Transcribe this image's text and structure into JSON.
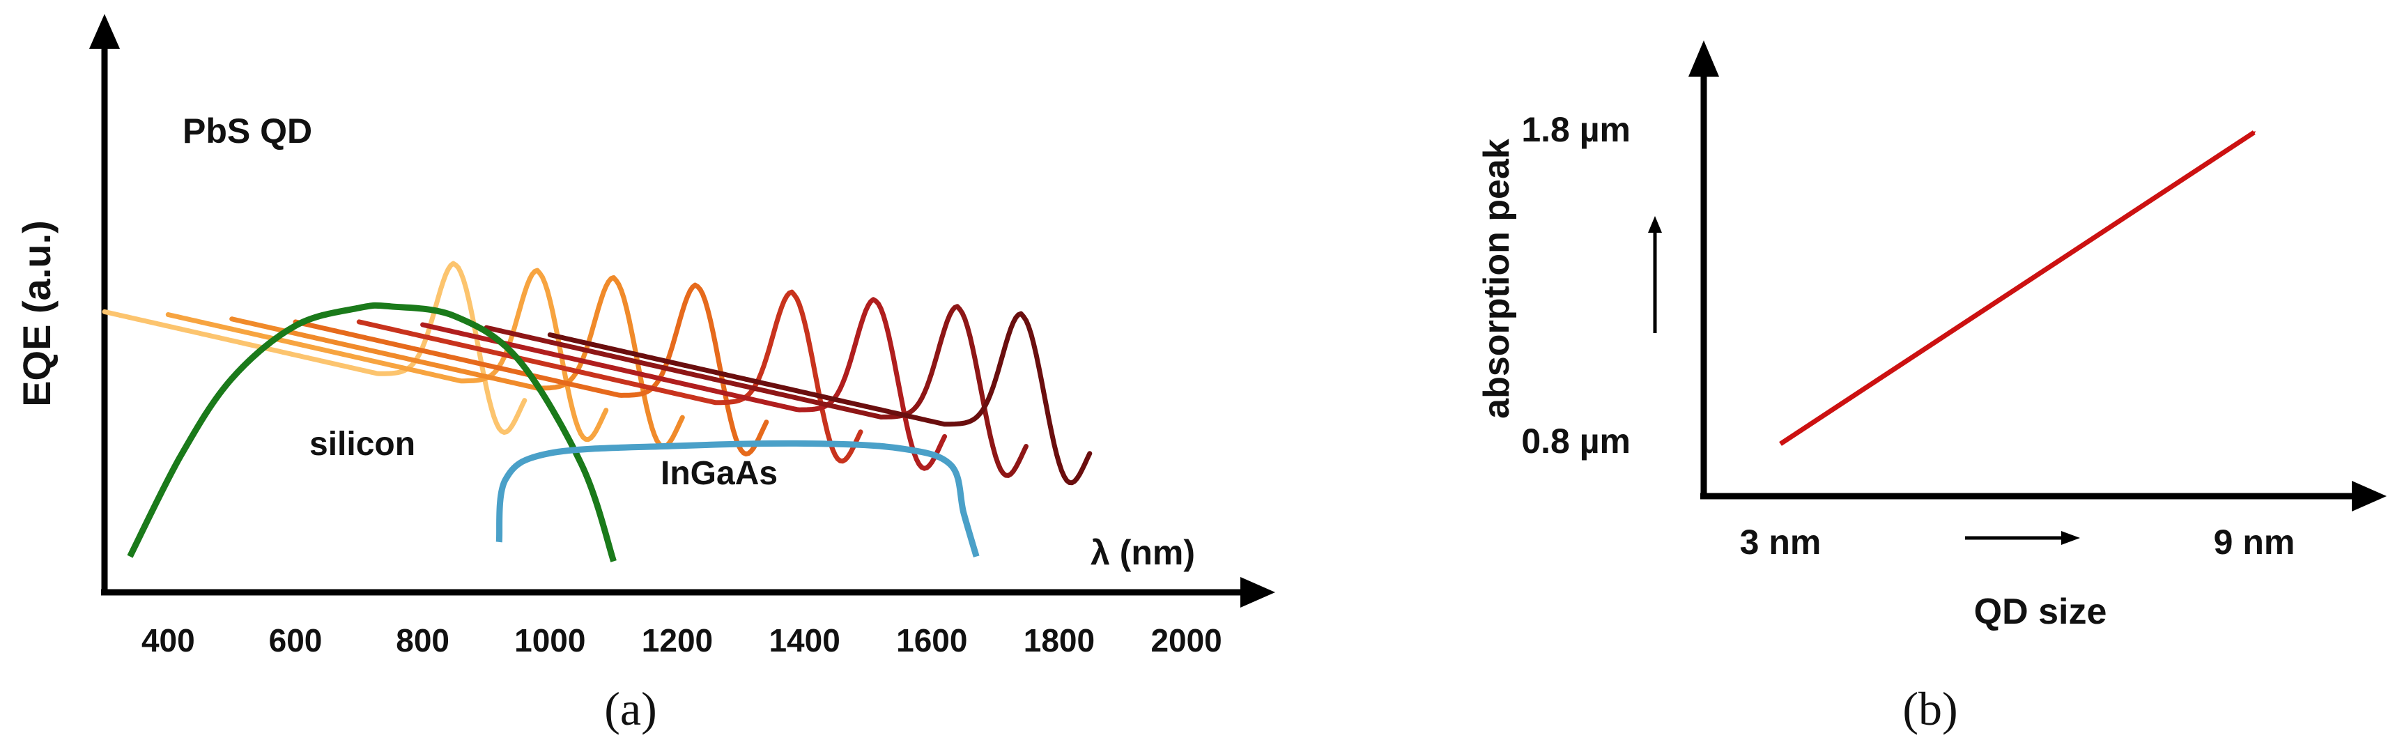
{
  "chart_data": [
    {
      "panel": "a",
      "caption": "(a)",
      "type": "line",
      "ylabel": "EQE (a.u.)",
      "xlabel": "λ (nm)",
      "x_ticks": [
        "400",
        "600",
        "800",
        "1000",
        "1200",
        "1400",
        "1600",
        "1800",
        "2000"
      ],
      "xlim": [
        300,
        2020
      ],
      "grid": false,
      "pbs_label": "PbS QD",
      "pbs_peaks_nm": [
        850,
        980,
        1100,
        1230,
        1380,
        1510,
        1640,
        1740
      ],
      "pbs_colors": [
        "#fcc46e",
        "#f7a440",
        "#f08a2a",
        "#e66a1c",
        "#c8331d",
        "#b01e1e",
        "#8e1616",
        "#6a0e0e"
      ],
      "series": [
        {
          "name": "silicon",
          "color": "#1a7a1a",
          "x": [
            340,
            420,
            500,
            600,
            700,
            750,
            850,
            950,
            1050,
            1100
          ],
          "y": [
            0.06,
            0.27,
            0.43,
            0.54,
            0.577,
            0.58,
            0.56,
            0.47,
            0.25,
            0.05
          ]
        },
        {
          "name": "InGaAs",
          "color": "#4aa0c8",
          "x": [
            920,
            930,
            1000,
            1200,
            1400,
            1550,
            1630,
            1650,
            1670
          ],
          "y": [
            0.09,
            0.22,
            0.275,
            0.29,
            0.295,
            0.285,
            0.25,
            0.15,
            0.06
          ]
        }
      ]
    },
    {
      "panel": "b",
      "caption": "(b)",
      "type": "line",
      "ylabel": "absorption peak",
      "xlabel": "QD size",
      "x_ticks": [
        "3 nm",
        "9 nm"
      ],
      "y_ticks": [
        "0.8 µm",
        "1.8 µm"
      ],
      "line_color": "#cc1111",
      "points": [
        {
          "x": 3,
          "y": 0.8
        },
        {
          "x": 9,
          "y": 1.8
        }
      ]
    }
  ]
}
